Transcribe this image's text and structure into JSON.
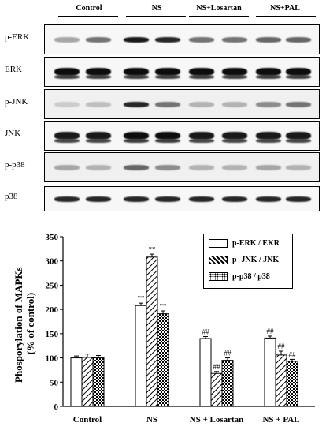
{
  "blot_groups": [
    "Control",
    "NS",
    "NS+Losartan",
    "NS+PAL"
  ],
  "blot_rows": [
    "p-ERK",
    "ERK",
    "p-JNK",
    "JNK",
    "p-p38",
    "p38"
  ],
  "legend": {
    "erk": "p-ERK / EKR",
    "jnk": "p- JNK / JNK",
    "p38": "p-p38 / p38"
  },
  "chart_data": {
    "type": "bar",
    "ylabel": "Phosporylation of MAPKs\n(% of control)",
    "xlabel": "",
    "ylim": [
      0,
      350
    ],
    "yticks": [
      0,
      50,
      100,
      150,
      200,
      250,
      300,
      350
    ],
    "categories": [
      "Control",
      "NS",
      "NS + Losartan",
      "NS + PAL"
    ],
    "series": [
      {
        "name": "p-ERK / EKR",
        "values": [
          100,
          208,
          140,
          141
        ],
        "errors": [
          4,
          5,
          4,
          4
        ],
        "annotations": [
          "",
          "**",
          "##",
          "##"
        ],
        "pattern": "white"
      },
      {
        "name": "p- JNK / JNK",
        "values": [
          101,
          308,
          68,
          106
        ],
        "errors": [
          7,
          6,
          4,
          8
        ],
        "annotations": [
          "",
          "**",
          "##",
          "##"
        ],
        "pattern": "hatch"
      },
      {
        "name": "p-p38 / p38",
        "values": [
          100,
          191,
          95,
          93
        ],
        "errors": [
          5,
          6,
          5,
          4
        ],
        "annotations": [
          "",
          "**",
          "##",
          "##"
        ],
        "pattern": "dots"
      }
    ],
    "grid": false,
    "legend_position": "top-right"
  }
}
